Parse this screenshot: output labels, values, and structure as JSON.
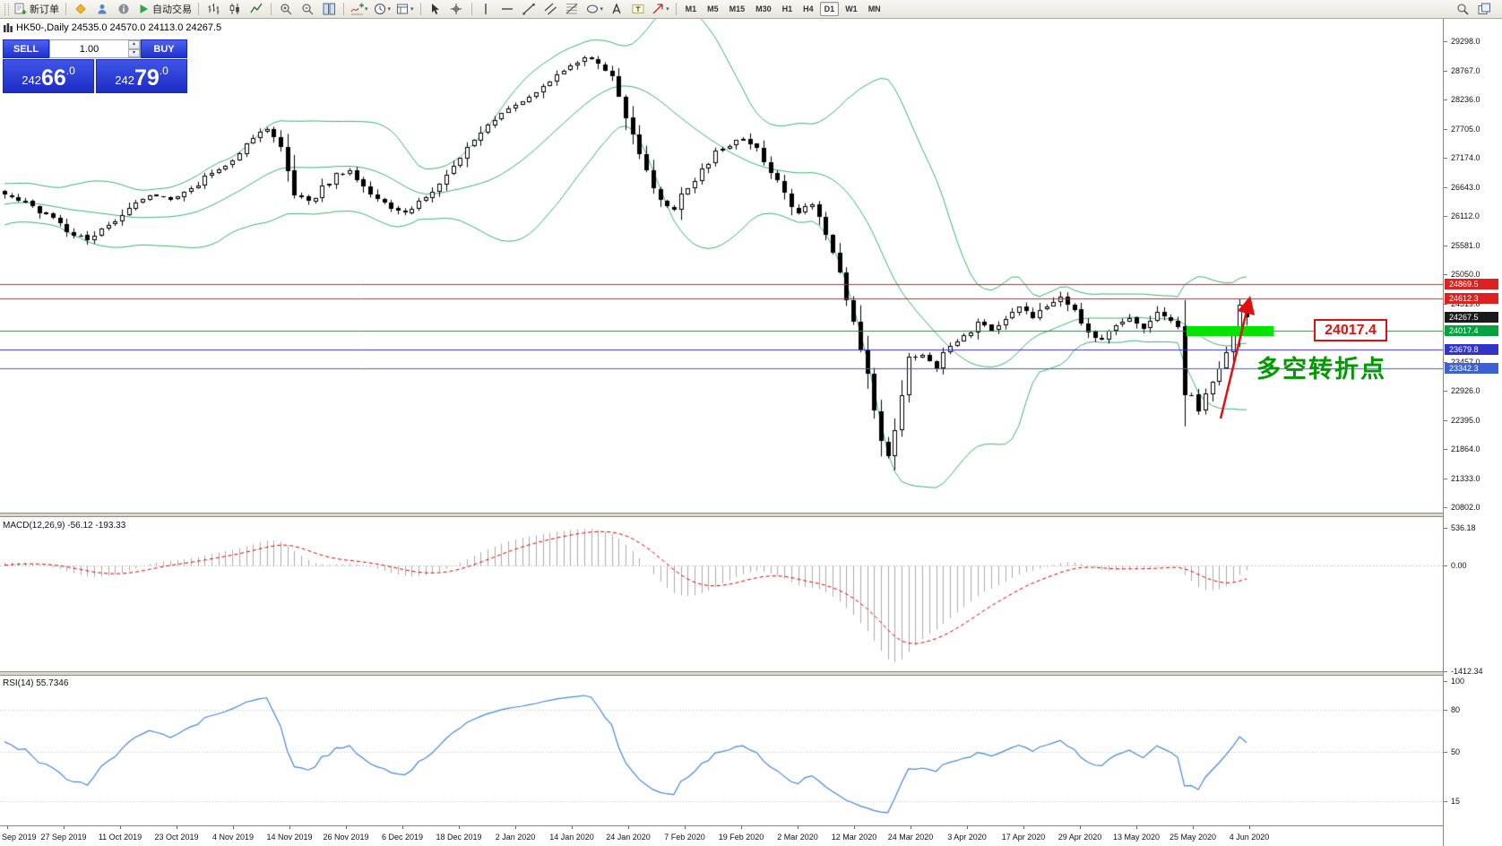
{
  "toolbar": {
    "new_order_label": "新订单",
    "autotrading_label": "自动交易",
    "icons": [
      "new-order",
      "|",
      "metaquotes",
      "profile",
      "community",
      "autotrading",
      "|",
      "bar-chart",
      "candlestick-chart",
      "line-chart",
      "|",
      "zoom-in",
      "zoom-out",
      "tile-windows",
      "|",
      "indicators",
      "periods",
      "templates",
      "|",
      "cursor",
      "crosshair",
      "|",
      "vertical-line",
      "horizontal-line",
      "trend-line",
      "channel",
      "fibonacci",
      "shapes",
      "text",
      "text-label",
      "arrows"
    ],
    "timeframes": [
      "M1",
      "M5",
      "M15",
      "M30",
      "H1",
      "H4",
      "D1",
      "W1",
      "MN"
    ],
    "active_timeframe": "D1",
    "right_icons": [
      "search",
      "chart-list"
    ]
  },
  "chart": {
    "symbol_info": "HK50-,Daily 24535.0 24570.0 24113.0 24267.5"
  },
  "trade_panel": {
    "sell_label": "SELL",
    "buy_label": "BUY",
    "volume": "1.00",
    "sell_price": {
      "a": "242",
      "b": "66",
      "c": ".0"
    },
    "buy_price": {
      "a": "242",
      "b": "79",
      "c": ".0"
    }
  },
  "annotations": {
    "level_callout": "24017.4",
    "turning_point_text": "多空转折点"
  },
  "chart_data": {
    "type": "candlestick",
    "symbol": "HK50-",
    "period": "Daily",
    "ohlc": {
      "open": 24535.0,
      "high": 24570.0,
      "low": 24113.0,
      "close": 24267.5
    },
    "bid": "24266.0",
    "ask": "24279.0",
    "y_axis_labels": [
      "29298.0",
      "28767.0",
      "28236.0",
      "27705.0",
      "27174.0",
      "26643.0",
      "26112.0",
      "25581.0",
      "25050.0",
      "24519.0",
      "23988.0",
      "23457.0",
      "22926.0",
      "22395.0",
      "21864.0",
      "21333.0",
      "20802.0"
    ],
    "y_range": {
      "max": 29298.0,
      "min": 20802.0
    },
    "x_axis_labels": [
      "Sep 2019",
      "27 Sep 2019",
      "11 Oct 2019",
      "23 Oct 2019",
      "4 Nov 2019",
      "14 Nov 2019",
      "26 Nov 2019",
      "6 Dec 2019",
      "18 Dec 2019",
      "2 Jan 2020",
      "14 Jan 2020",
      "24 Jan 2020",
      "7 Feb 2020",
      "19 Feb 2020",
      "2 Mar 2020",
      "12 Mar 2020",
      "24 Mar 2020",
      "3 Apr 2020",
      "17 Apr 2020",
      "29 Apr 2020",
      "13 May 2020",
      "25 May 2020",
      "4 Jun 2020"
    ],
    "levels": [
      {
        "price": 24869.5,
        "label": "24869.5",
        "color": "#DD2020",
        "style": "solid"
      },
      {
        "price": 24612.3,
        "label": "24612.3",
        "color": "#DD2020",
        "style": "solid"
      },
      {
        "price": 24267.5,
        "label": "24267.5",
        "color": "#1a1a1a",
        "style": "tag-only"
      },
      {
        "price": 24017.4,
        "label": "24017.4",
        "color": "#00A33C",
        "style": "solid"
      },
      {
        "price": 23679.8,
        "label": "23679.8",
        "color": "#3333CC",
        "style": "solid"
      },
      {
        "price": 23342.3,
        "label": "23342.3",
        "color": "#3A62D8",
        "style": "solid"
      }
    ],
    "num_candles": 181,
    "lead_in": 30,
    "close_anchors": [
      [
        0,
        26500
      ],
      [
        3,
        26380
      ],
      [
        6,
        26120
      ],
      [
        8,
        25950
      ],
      [
        10,
        25780
      ],
      [
        12,
        25660
      ],
      [
        14,
        25860
      ],
      [
        16,
        26060
      ],
      [
        18,
        26300
      ],
      [
        20,
        26420
      ],
      [
        22,
        26500
      ],
      [
        24,
        26430
      ],
      [
        26,
        26580
      ],
      [
        28,
        26720
      ],
      [
        30,
        26900
      ],
      [
        32,
        27020
      ],
      [
        34,
        27280
      ],
      [
        36,
        27550
      ],
      [
        38,
        27700
      ],
      [
        40,
        27360
      ],
      [
        42,
        26560
      ],
      [
        44,
        26380
      ],
      [
        46,
        26620
      ],
      [
        48,
        26850
      ],
      [
        50,
        26920
      ],
      [
        52,
        26660
      ],
      [
        54,
        26400
      ],
      [
        56,
        26250
      ],
      [
        58,
        26170
      ],
      [
        60,
        26360
      ],
      [
        62,
        26560
      ],
      [
        64,
        26870
      ],
      [
        66,
        27160
      ],
      [
        68,
        27500
      ],
      [
        70,
        27770
      ],
      [
        72,
        27990
      ],
      [
        74,
        28130
      ],
      [
        76,
        28290
      ],
      [
        78,
        28530
      ],
      [
        80,
        28710
      ],
      [
        82,
        28860
      ],
      [
        84,
        29010
      ],
      [
        86,
        28930
      ],
      [
        88,
        28600
      ],
      [
        90,
        27890
      ],
      [
        92,
        27280
      ],
      [
        93,
        26880
      ],
      [
        95,
        26340
      ],
      [
        97,
        26270
      ],
      [
        99,
        26660
      ],
      [
        101,
        26990
      ],
      [
        103,
        27260
      ],
      [
        105,
        27430
      ],
      [
        107,
        27530
      ],
      [
        109,
        27380
      ],
      [
        111,
        26940
      ],
      [
        113,
        26480
      ],
      [
        115,
        26160
      ],
      [
        117,
        26330
      ],
      [
        119,
        25740
      ],
      [
        121,
        25140
      ],
      [
        123,
        24260
      ],
      [
        125,
        23240
      ],
      [
        126,
        22480
      ],
      [
        127,
        21940
      ],
      [
        128,
        21690
      ],
      [
        129,
        22360
      ],
      [
        130,
        22960
      ],
      [
        131,
        23490
      ],
      [
        133,
        23580
      ],
      [
        135,
        23360
      ],
      [
        137,
        23770
      ],
      [
        139,
        23900
      ],
      [
        141,
        24160
      ],
      [
        143,
        24010
      ],
      [
        145,
        24260
      ],
      [
        147,
        24430
      ],
      [
        149,
        24280
      ],
      [
        151,
        24510
      ],
      [
        153,
        24610
      ],
      [
        155,
        24380
      ],
      [
        157,
        23960
      ],
      [
        159,
        23830
      ],
      [
        161,
        24090
      ],
      [
        163,
        24270
      ],
      [
        165,
        24060
      ],
      [
        167,
        24330
      ],
      [
        169,
        24190
      ],
      [
        170,
        24060
      ],
      [
        171,
        22940
      ],
      [
        172,
        22820
      ],
      [
        173,
        22560
      ],
      [
        174,
        22860
      ],
      [
        175,
        23110
      ],
      [
        176,
        23360
      ],
      [
        177,
        23610
      ],
      [
        178,
        23960
      ],
      [
        179,
        24500
      ],
      [
        180,
        24267.5
      ]
    ],
    "indicators": {
      "bollinger": {
        "period": 20,
        "deviation": 2,
        "color": "#3CB371"
      },
      "macd": {
        "label": "MACD(12,26,9) -56.12 -193.33",
        "params": [
          12,
          26,
          9
        ],
        "values": [
          -56.12,
          -193.33
        ],
        "axis": [
          "536.18",
          "0.00",
          "-1412.34"
        ]
      },
      "rsi": {
        "label": "RSI(14) 55.7346",
        "period": 14,
        "value": 55.7346,
        "axis": [
          "100",
          "80",
          "50",
          "15"
        ]
      }
    }
  }
}
